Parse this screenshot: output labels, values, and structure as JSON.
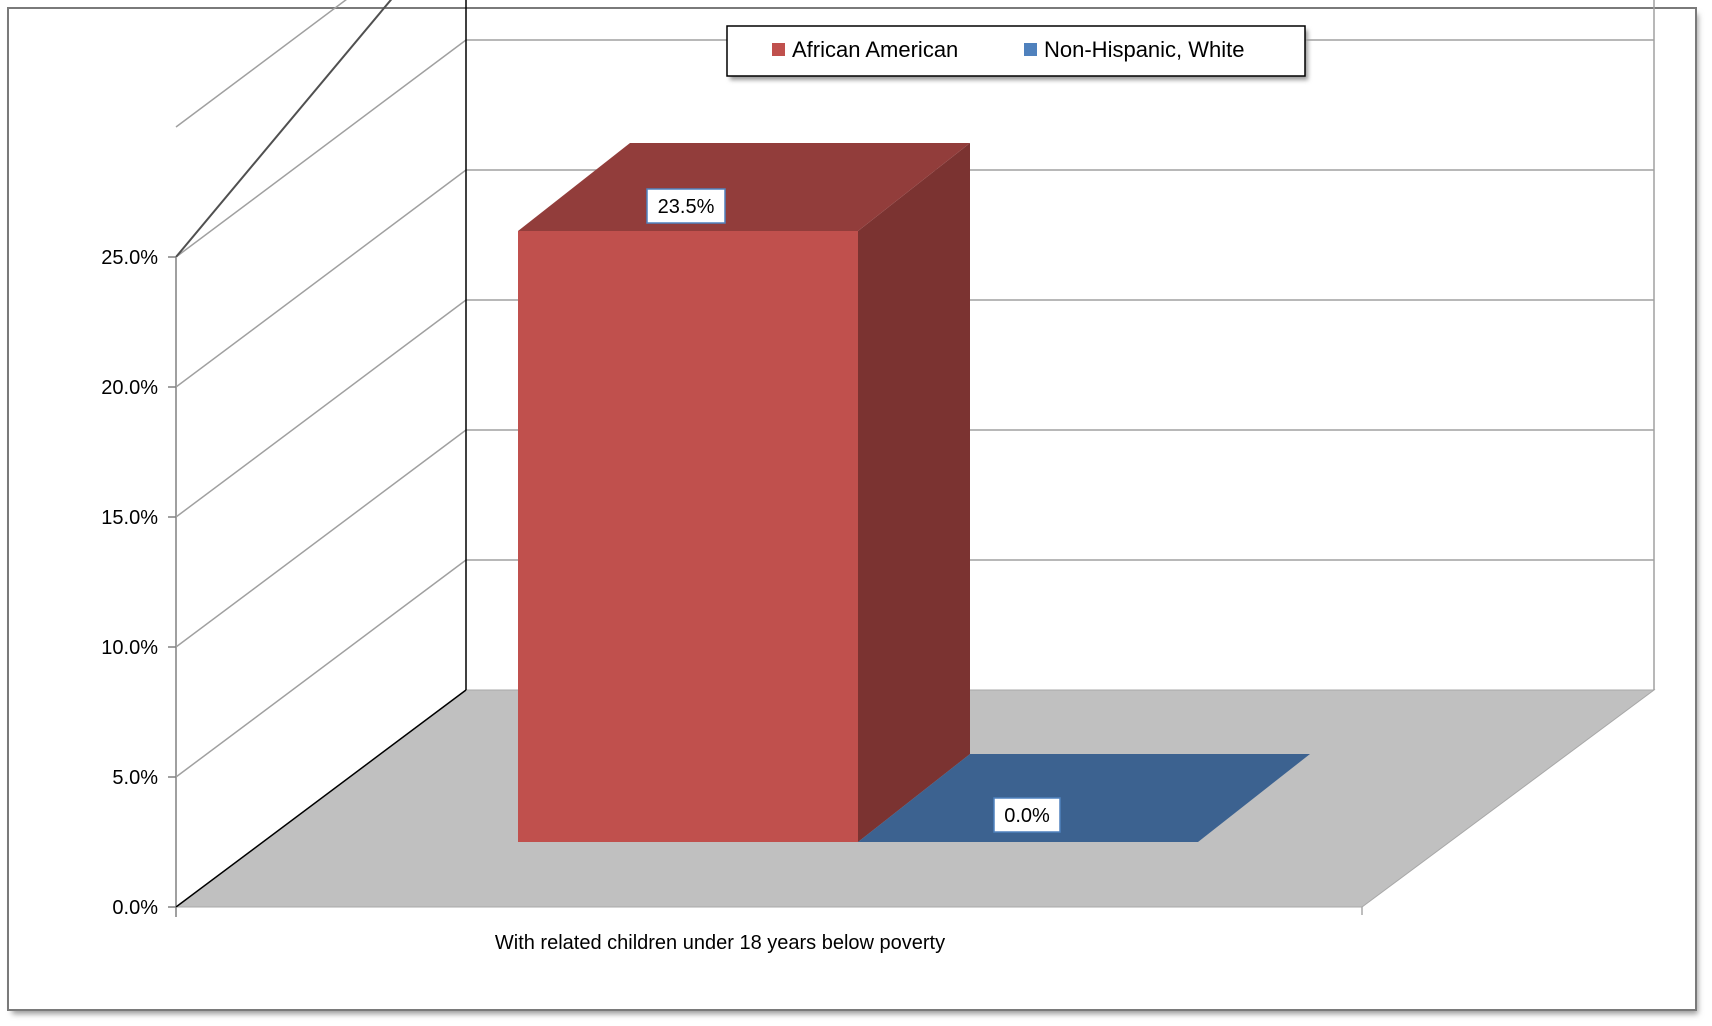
{
  "chart_data": {
    "type": "bar",
    "style": "3d-clustered-column",
    "categories": [
      "With related children under 18 years below poverty"
    ],
    "series": [
      {
        "name": "African American",
        "values": [
          0.235
        ],
        "label": "23.5%",
        "color": "#C0504D"
      },
      {
        "name": "Non-Hispanic, White",
        "values": [
          0.0
        ],
        "label": "0.0%",
        "color": "#4F81BD"
      }
    ],
    "y_ticks": [
      "0.0%",
      "5.0%",
      "10.0%",
      "15.0%",
      "20.0%",
      "25.0%"
    ],
    "ylim": [
      0,
      0.25
    ],
    "grid": true,
    "legend_position": "top",
    "floor_color": "#C0C0C0"
  }
}
